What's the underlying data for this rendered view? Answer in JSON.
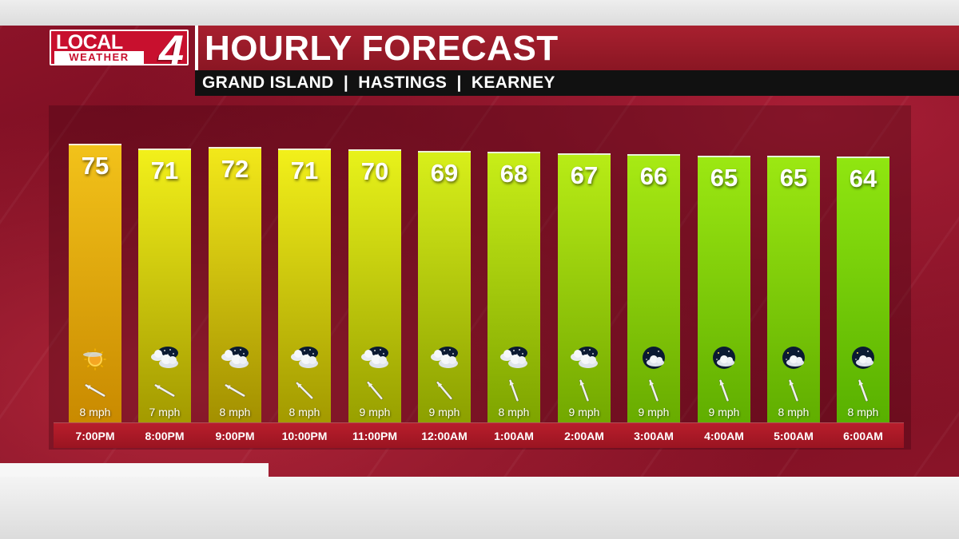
{
  "logo": {
    "local": "LOCAL",
    "weather": "WEATHER",
    "number": "4"
  },
  "title": "HOURLY FORECAST",
  "subtitle": "GRAND ISLAND  |  HASTINGS  |  KEARNEY",
  "colors": {
    "title_red": "#a8202f",
    "time_bar_red": "#b81e2c",
    "background_red": "#7a0e22",
    "bar_warm": "#e0a000",
    "bar_cool": "#70c800"
  },
  "hours": [
    {
      "time": "7:00PM",
      "temp": "75",
      "wind": "8 mph",
      "wind_dir": 300,
      "icon": "sunset-partly-cloudy-icon",
      "c1": "#f2c21a",
      "c2": "#c98a00"
    },
    {
      "time": "8:00PM",
      "temp": "71",
      "wind": "7 mph",
      "wind_dir": 300,
      "icon": "night-partly-cloudy-icon",
      "c1": "#f2f01a",
      "c2": "#a39a00"
    },
    {
      "time": "9:00PM",
      "temp": "72",
      "wind": "8 mph",
      "wind_dir": 300,
      "icon": "night-partly-cloudy-icon",
      "c1": "#f2e81a",
      "c2": "#a39000"
    },
    {
      "time": "10:00PM",
      "temp": "71",
      "wind": "8 mph",
      "wind_dir": 315,
      "icon": "night-partly-cloudy-icon",
      "c1": "#f2f01a",
      "c2": "#a39a00"
    },
    {
      "time": "11:00PM",
      "temp": "70",
      "wind": "9 mph",
      "wind_dir": 320,
      "icon": "night-partly-cloudy-icon",
      "c1": "#e8f21a",
      "c2": "#98a000"
    },
    {
      "time": "12:00AM",
      "temp": "69",
      "wind": "9 mph",
      "wind_dir": 320,
      "icon": "night-partly-cloudy-icon",
      "c1": "#d8ef1a",
      "c2": "#8ca000"
    },
    {
      "time": "1:00AM",
      "temp": "68",
      "wind": "8 mph",
      "wind_dir": 340,
      "icon": "night-partly-cloudy-icon",
      "c1": "#c8ee18",
      "c2": "#7ea400"
    },
    {
      "time": "2:00AM",
      "temp": "67",
      "wind": "9 mph",
      "wind_dir": 340,
      "icon": "night-partly-cloudy-icon",
      "c1": "#b8ec16",
      "c2": "#72a800"
    },
    {
      "time": "3:00AM",
      "temp": "66",
      "wind": "9 mph",
      "wind_dir": 340,
      "icon": "night-mostly-clear-icon",
      "c1": "#a8ea14",
      "c2": "#68ac00"
    },
    {
      "time": "4:00AM",
      "temp": "65",
      "wind": "9 mph",
      "wind_dir": 340,
      "icon": "night-mostly-clear-icon",
      "c1": "#9ce812",
      "c2": "#60ae00"
    },
    {
      "time": "5:00AM",
      "temp": "65",
      "wind": "8 mph",
      "wind_dir": 340,
      "icon": "night-mostly-clear-icon",
      "c1": "#9ce812",
      "c2": "#60ae00"
    },
    {
      "time": "6:00AM",
      "temp": "64",
      "wind": "8 mph",
      "wind_dir": 340,
      "icon": "night-mostly-clear-icon",
      "c1": "#90e610",
      "c2": "#58b000"
    }
  ]
}
